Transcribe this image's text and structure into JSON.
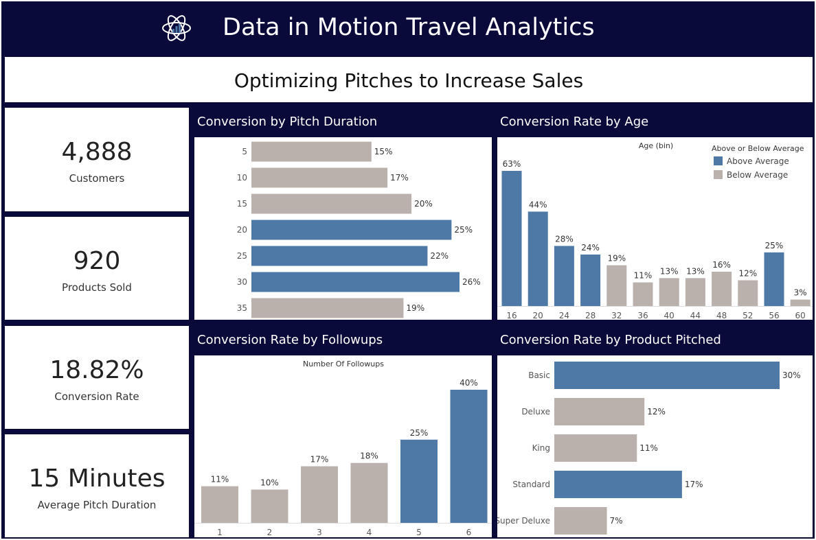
{
  "header": {
    "title": "Data in Motion Travel Analytics",
    "logo_icon": "atom-chart-icon"
  },
  "subtitle": "Optimizing Pitches to Increase Sales",
  "colors": {
    "navy": "#0a0a3a",
    "above_average": "#4e79a7",
    "below_average": "#bab0ac"
  },
  "kpis": [
    {
      "value": "4,888",
      "label": "Customers"
    },
    {
      "value": "920",
      "label": "Products Sold"
    },
    {
      "value": "18.82%",
      "label": "Conversion Rate"
    },
    {
      "value": "15 Minutes",
      "label": "Average Pitch Duration"
    }
  ],
  "panels": {
    "pitch_duration": {
      "title": "Conversion by Pitch Duration"
    },
    "age": {
      "title": "Conversion Rate by Age"
    },
    "followups": {
      "title": "Conversion Rate by Followups"
    },
    "product": {
      "title": "Conversion Rate by Product Pitched"
    }
  },
  "chart_data": [
    {
      "id": "pitch_duration",
      "type": "bar",
      "orientation": "horizontal",
      "categories": [
        "5",
        "10",
        "15",
        "20",
        "25",
        "30",
        "35"
      ],
      "values": [
        15,
        17,
        20,
        25,
        22,
        26,
        19
      ],
      "labels": [
        "15%",
        "17%",
        "20%",
        "25%",
        "22%",
        "26%",
        "19%"
      ],
      "above_average": [
        false,
        false,
        false,
        true,
        true,
        true,
        false
      ]
    },
    {
      "id": "age",
      "type": "bar",
      "orientation": "vertical",
      "header": "Age (bin)",
      "categories": [
        "16",
        "20",
        "24",
        "28",
        "32",
        "36",
        "40",
        "44",
        "48",
        "52",
        "56",
        "60"
      ],
      "values": [
        63,
        44,
        28,
        24,
        19,
        11,
        13,
        13,
        16,
        12,
        25,
        3
      ],
      "labels": [
        "63%",
        "44%",
        "28%",
        "24%",
        "19%",
        "11%",
        "13%",
        "13%",
        "16%",
        "12%",
        "25%",
        "3%"
      ],
      "above_average": [
        true,
        true,
        true,
        true,
        false,
        false,
        false,
        false,
        false,
        false,
        true,
        false
      ],
      "legend": {
        "title": "Above or Below Average",
        "entries": [
          "Above Average",
          "Below Average"
        ],
        "placement": "top-right"
      }
    },
    {
      "id": "followups",
      "type": "bar",
      "orientation": "vertical",
      "header": "Number Of Followups",
      "categories": [
        "1",
        "2",
        "3",
        "4",
        "5",
        "6"
      ],
      "values": [
        11,
        10,
        17,
        18,
        25,
        40
      ],
      "labels": [
        "11%",
        "10%",
        "17%",
        "18%",
        "25%",
        "40%"
      ],
      "above_average": [
        false,
        false,
        false,
        false,
        true,
        true
      ]
    },
    {
      "id": "product",
      "type": "bar",
      "orientation": "horizontal",
      "categories": [
        "Basic",
        "Deluxe",
        "King",
        "Standard",
        "Super Deluxe"
      ],
      "values": [
        30,
        12,
        11,
        17,
        7
      ],
      "labels": [
        "30%",
        "12%",
        "11%",
        "17%",
        "7%"
      ],
      "above_average": [
        true,
        false,
        false,
        true,
        false
      ]
    }
  ]
}
